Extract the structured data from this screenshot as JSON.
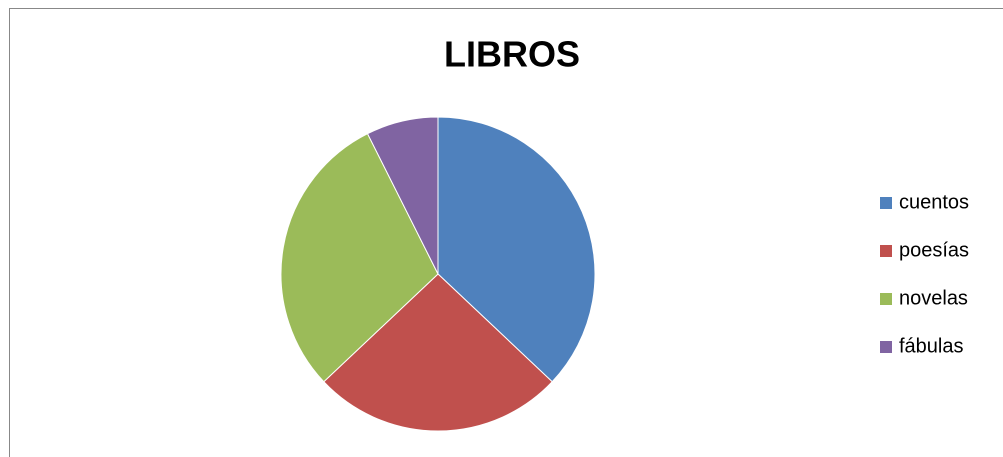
{
  "chart_data": {
    "type": "pie",
    "title": "LIBROS",
    "categories": [
      "cuentos",
      "poesías",
      "novelas",
      "fábulas"
    ],
    "values": [
      5,
      3.5,
      4,
      1
    ],
    "colors": [
      "#4f81bd",
      "#c0504d",
      "#9bbb59",
      "#8064a2"
    ],
    "legend": "right"
  }
}
